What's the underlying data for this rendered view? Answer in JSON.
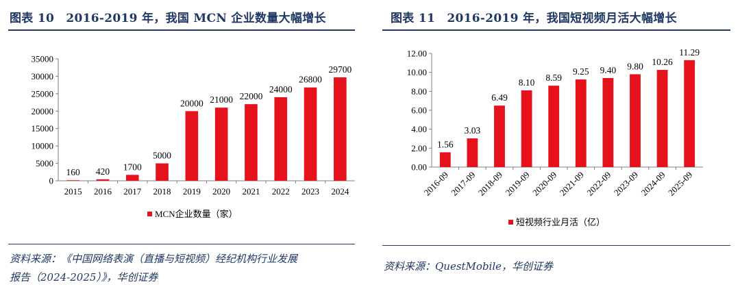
{
  "left": {
    "figure_title": "图表 10　2016-2019 年，我国 MCN 企业数量大幅增长",
    "source_line1": "资料来源：《中国网络表演（直播与短视频）经纪机构行业发展",
    "source_line2": "报告（2024-2025）》，华创证券"
  },
  "right": {
    "figure_title": "图表 11　2016-2019 年，我国短视频月活大幅增长",
    "source_line1": "资料来源：QuestMobile，华创证券"
  },
  "colors": {
    "bar": "#e5121c",
    "title": "#1f3864",
    "axis": "#7f7f7f"
  },
  "chart_data": [
    {
      "type": "bar",
      "title": "",
      "categories": [
        "2015",
        "2016",
        "2017",
        "2018",
        "2019",
        "2020",
        "2021",
        "2022",
        "2023",
        "2024"
      ],
      "values": [
        160,
        420,
        1700,
        5000,
        20000,
        21000,
        22000,
        24000,
        26800,
        29700
      ],
      "value_labels": [
        "160",
        "420",
        "1700",
        "5000",
        "20000",
        "21000",
        "22000",
        "24000",
        "26800",
        "29700"
      ],
      "ylim": [
        0,
        35000
      ],
      "yticks": [
        "0",
        "5000",
        "10000",
        "15000",
        "20000",
        "25000",
        "30000",
        "35000"
      ],
      "legend": "MCN企业数量（家）",
      "legend_position": "bottom"
    },
    {
      "type": "bar",
      "title": "",
      "categories": [
        "2016-09",
        "2017-09",
        "2018-09",
        "2019-09",
        "2020-09",
        "2021-09",
        "2022-09",
        "2023-09",
        "2024-09",
        "2025-09"
      ],
      "values": [
        1.56,
        3.03,
        6.49,
        8.1,
        8.59,
        9.25,
        9.4,
        9.8,
        10.26,
        11.29
      ],
      "value_labels": [
        "1.56",
        "3.03",
        "6.49",
        "8.10",
        "8.59",
        "9.25",
        "9.40",
        "9.80",
        "10.26",
        "11.29"
      ],
      "ylim": [
        0,
        12
      ],
      "yticks": [
        "0.00",
        "2.00",
        "4.00",
        "6.00",
        "8.00",
        "10.00",
        "12.00"
      ],
      "legend": "短视频行业月活（亿）",
      "legend_position": "bottom"
    }
  ]
}
